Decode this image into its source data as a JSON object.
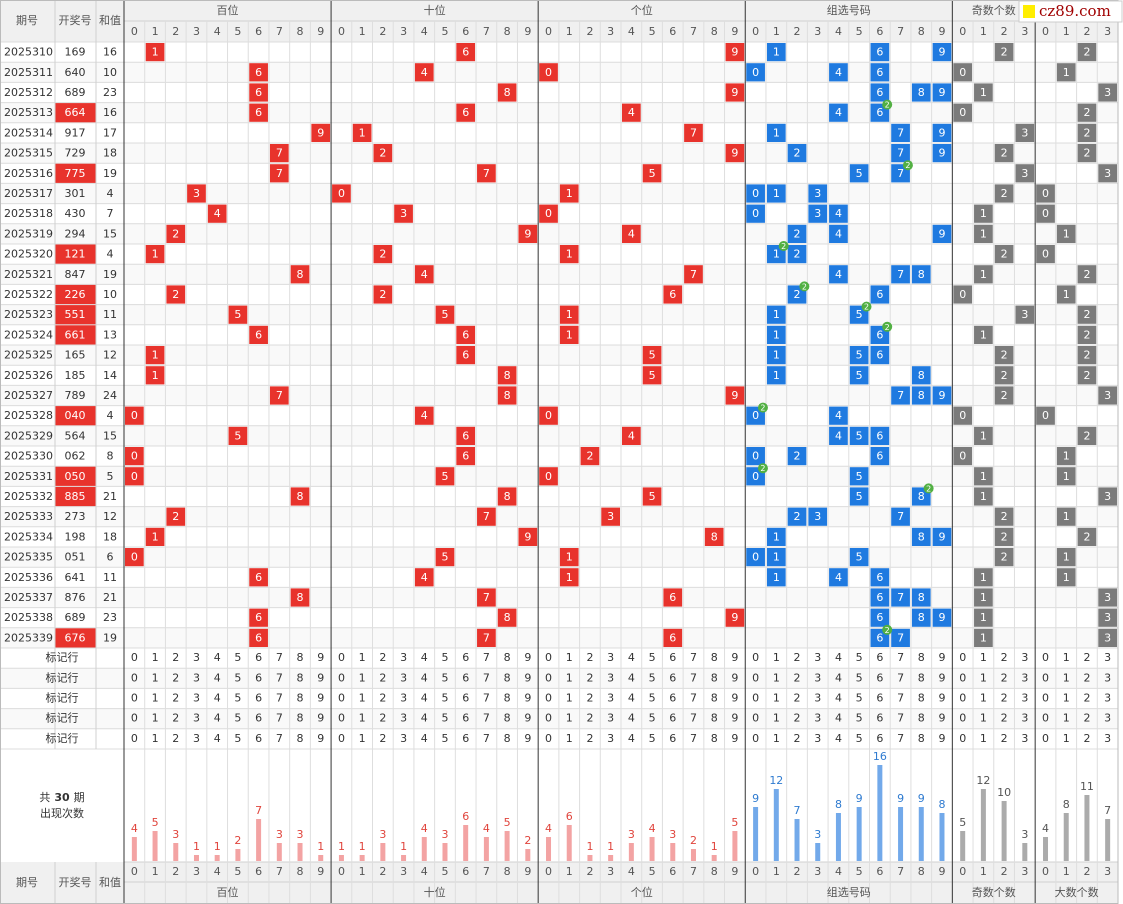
{
  "chart_data": {
    "type": "trend",
    "watermark": "cz89.com",
    "headers": {
      "period": "期号",
      "draw": "开奖号",
      "sum": "和值",
      "hundreds": "百位",
      "tens": "十位",
      "units": "个位",
      "group": "组选号码",
      "odd": "奇数个数",
      "big": "大数个数"
    },
    "digits": [
      0,
      1,
      2,
      3,
      4,
      5,
      6,
      7,
      8,
      9
    ],
    "counts": [
      0,
      1,
      2,
      3
    ],
    "pair_mark": "2",
    "mark_row_label": "标记行",
    "mark_rows": 5,
    "rows": [
      {
        "period": 2025310,
        "draw": "169",
        "sum": 16,
        "hundreds": 1,
        "tens": 6,
        "units": 9,
        "odd": 2,
        "big": 2
      },
      {
        "period": 2025311,
        "draw": "640",
        "sum": 10,
        "hundreds": 6,
        "tens": 4,
        "units": 0,
        "odd": 0,
        "big": 1
      },
      {
        "period": 2025312,
        "draw": "689",
        "sum": 23,
        "hundreds": 6,
        "tens": 8,
        "units": 9,
        "odd": 1,
        "big": 3
      },
      {
        "period": 2025313,
        "draw": "664",
        "sum": 16,
        "hundreds": 6,
        "tens": 6,
        "units": 4,
        "odd": 0,
        "big": 2
      },
      {
        "period": 2025314,
        "draw": "917",
        "sum": 17,
        "hundreds": 9,
        "tens": 1,
        "units": 7,
        "odd": 3,
        "big": 2
      },
      {
        "period": 2025315,
        "draw": "729",
        "sum": 18,
        "hundreds": 7,
        "tens": 2,
        "units": 9,
        "odd": 2,
        "big": 2
      },
      {
        "period": 2025316,
        "draw": "775",
        "sum": 19,
        "hundreds": 7,
        "tens": 7,
        "units": 5,
        "odd": 3,
        "big": 3
      },
      {
        "period": 2025317,
        "draw": "301",
        "sum": 4,
        "hundreds": 3,
        "tens": 0,
        "units": 1,
        "odd": 2,
        "big": 0
      },
      {
        "period": 2025318,
        "draw": "430",
        "sum": 7,
        "hundreds": 4,
        "tens": 3,
        "units": 0,
        "odd": 1,
        "big": 0
      },
      {
        "period": 2025319,
        "draw": "294",
        "sum": 15,
        "hundreds": 2,
        "tens": 9,
        "units": 4,
        "odd": 1,
        "big": 1
      },
      {
        "period": 2025320,
        "draw": "121",
        "sum": 4,
        "hundreds": 1,
        "tens": 2,
        "units": 1,
        "odd": 2,
        "big": 0
      },
      {
        "period": 2025321,
        "draw": "847",
        "sum": 19,
        "hundreds": 8,
        "tens": 4,
        "units": 7,
        "odd": 1,
        "big": 2
      },
      {
        "period": 2025322,
        "draw": "226",
        "sum": 10,
        "hundreds": 2,
        "tens": 2,
        "units": 6,
        "odd": 0,
        "big": 1
      },
      {
        "period": 2025323,
        "draw": "551",
        "sum": 11,
        "hundreds": 5,
        "tens": 5,
        "units": 1,
        "odd": 3,
        "big": 2
      },
      {
        "period": 2025324,
        "draw": "661",
        "sum": 13,
        "hundreds": 6,
        "tens": 6,
        "units": 1,
        "odd": 1,
        "big": 2
      },
      {
        "period": 2025325,
        "draw": "165",
        "sum": 12,
        "hundreds": 1,
        "tens": 6,
        "units": 5,
        "odd": 2,
        "big": 2
      },
      {
        "period": 2025326,
        "draw": "185",
        "sum": 14,
        "hundreds": 1,
        "tens": 8,
        "units": 5,
        "odd": 2,
        "big": 2
      },
      {
        "period": 2025327,
        "draw": "789",
        "sum": 24,
        "hundreds": 7,
        "tens": 8,
        "units": 9,
        "odd": 2,
        "big": 3
      },
      {
        "period": 2025328,
        "draw": "040",
        "sum": 4,
        "hundreds": 0,
        "tens": 4,
        "units": 0,
        "odd": 0,
        "big": 0
      },
      {
        "period": 2025329,
        "draw": "564",
        "sum": 15,
        "hundreds": 5,
        "tens": 6,
        "units": 4,
        "odd": 1,
        "big": 2
      },
      {
        "period": 2025330,
        "draw": "062",
        "sum": 8,
        "hundreds": 0,
        "tens": 6,
        "units": 2,
        "odd": 0,
        "big": 1
      },
      {
        "period": 2025331,
        "draw": "050",
        "sum": 5,
        "hundreds": 0,
        "tens": 5,
        "units": 0,
        "odd": 1,
        "big": 1
      },
      {
        "period": 2025332,
        "draw": "885",
        "sum": 21,
        "hundreds": 8,
        "tens": 8,
        "units": 5,
        "odd": 1,
        "big": 3
      },
      {
        "period": 2025333,
        "draw": "273",
        "sum": 12,
        "hundreds": 2,
        "tens": 7,
        "units": 3,
        "odd": 2,
        "big": 1
      },
      {
        "period": 2025334,
        "draw": "198",
        "sum": 18,
        "hundreds": 1,
        "tens": 9,
        "units": 8,
        "odd": 2,
        "big": 2
      },
      {
        "period": 2025335,
        "draw": "051",
        "sum": 6,
        "hundreds": 0,
        "tens": 5,
        "units": 1,
        "odd": 2,
        "big": 1
      },
      {
        "period": 2025336,
        "draw": "641",
        "sum": 11,
        "hundreds": 6,
        "tens": 4,
        "units": 1,
        "odd": 1,
        "big": 1
      },
      {
        "period": 2025337,
        "draw": "876",
        "sum": 21,
        "hundreds": 8,
        "tens": 7,
        "units": 6,
        "odd": 1,
        "big": 3
      },
      {
        "period": 2025338,
        "draw": "689",
        "sum": 23,
        "hundreds": 6,
        "tens": 8,
        "units": 9,
        "odd": 1,
        "big": 3
      },
      {
        "period": 2025339,
        "draw": "676",
        "sum": 19,
        "hundreds": 6,
        "tens": 7,
        "units": 6,
        "odd": 1,
        "big": 3
      }
    ],
    "stats": {
      "total_prefix": "共",
      "periods": 30,
      "total_suffix": "期",
      "label": "出现次数",
      "hundreds": [
        4,
        5,
        3,
        1,
        1,
        2,
        7,
        3,
        3,
        1
      ],
      "tens": [
        1,
        1,
        3,
        1,
        4,
        3,
        6,
        4,
        5,
        2
      ],
      "units": [
        4,
        6,
        1,
        1,
        3,
        4,
        3,
        2,
        1,
        5
      ],
      "group": [
        9,
        12,
        7,
        3,
        8,
        9,
        16,
        9,
        9,
        8
      ],
      "odd": [
        5,
        12,
        10,
        3
      ],
      "big": [
        4,
        8,
        11,
        7
      ]
    },
    "colors": {
      "position": "#e8332c",
      "group": "#1f7ae0",
      "count": "#7b7b7b",
      "pair": "#52b043",
      "position_bar": "#f3a3a3",
      "group_bar": "#72a9ea",
      "count_bar": "#ababab",
      "position_label": "#e0443c",
      "group_label": "#2f7bd0",
      "count_label": "#555555"
    }
  }
}
